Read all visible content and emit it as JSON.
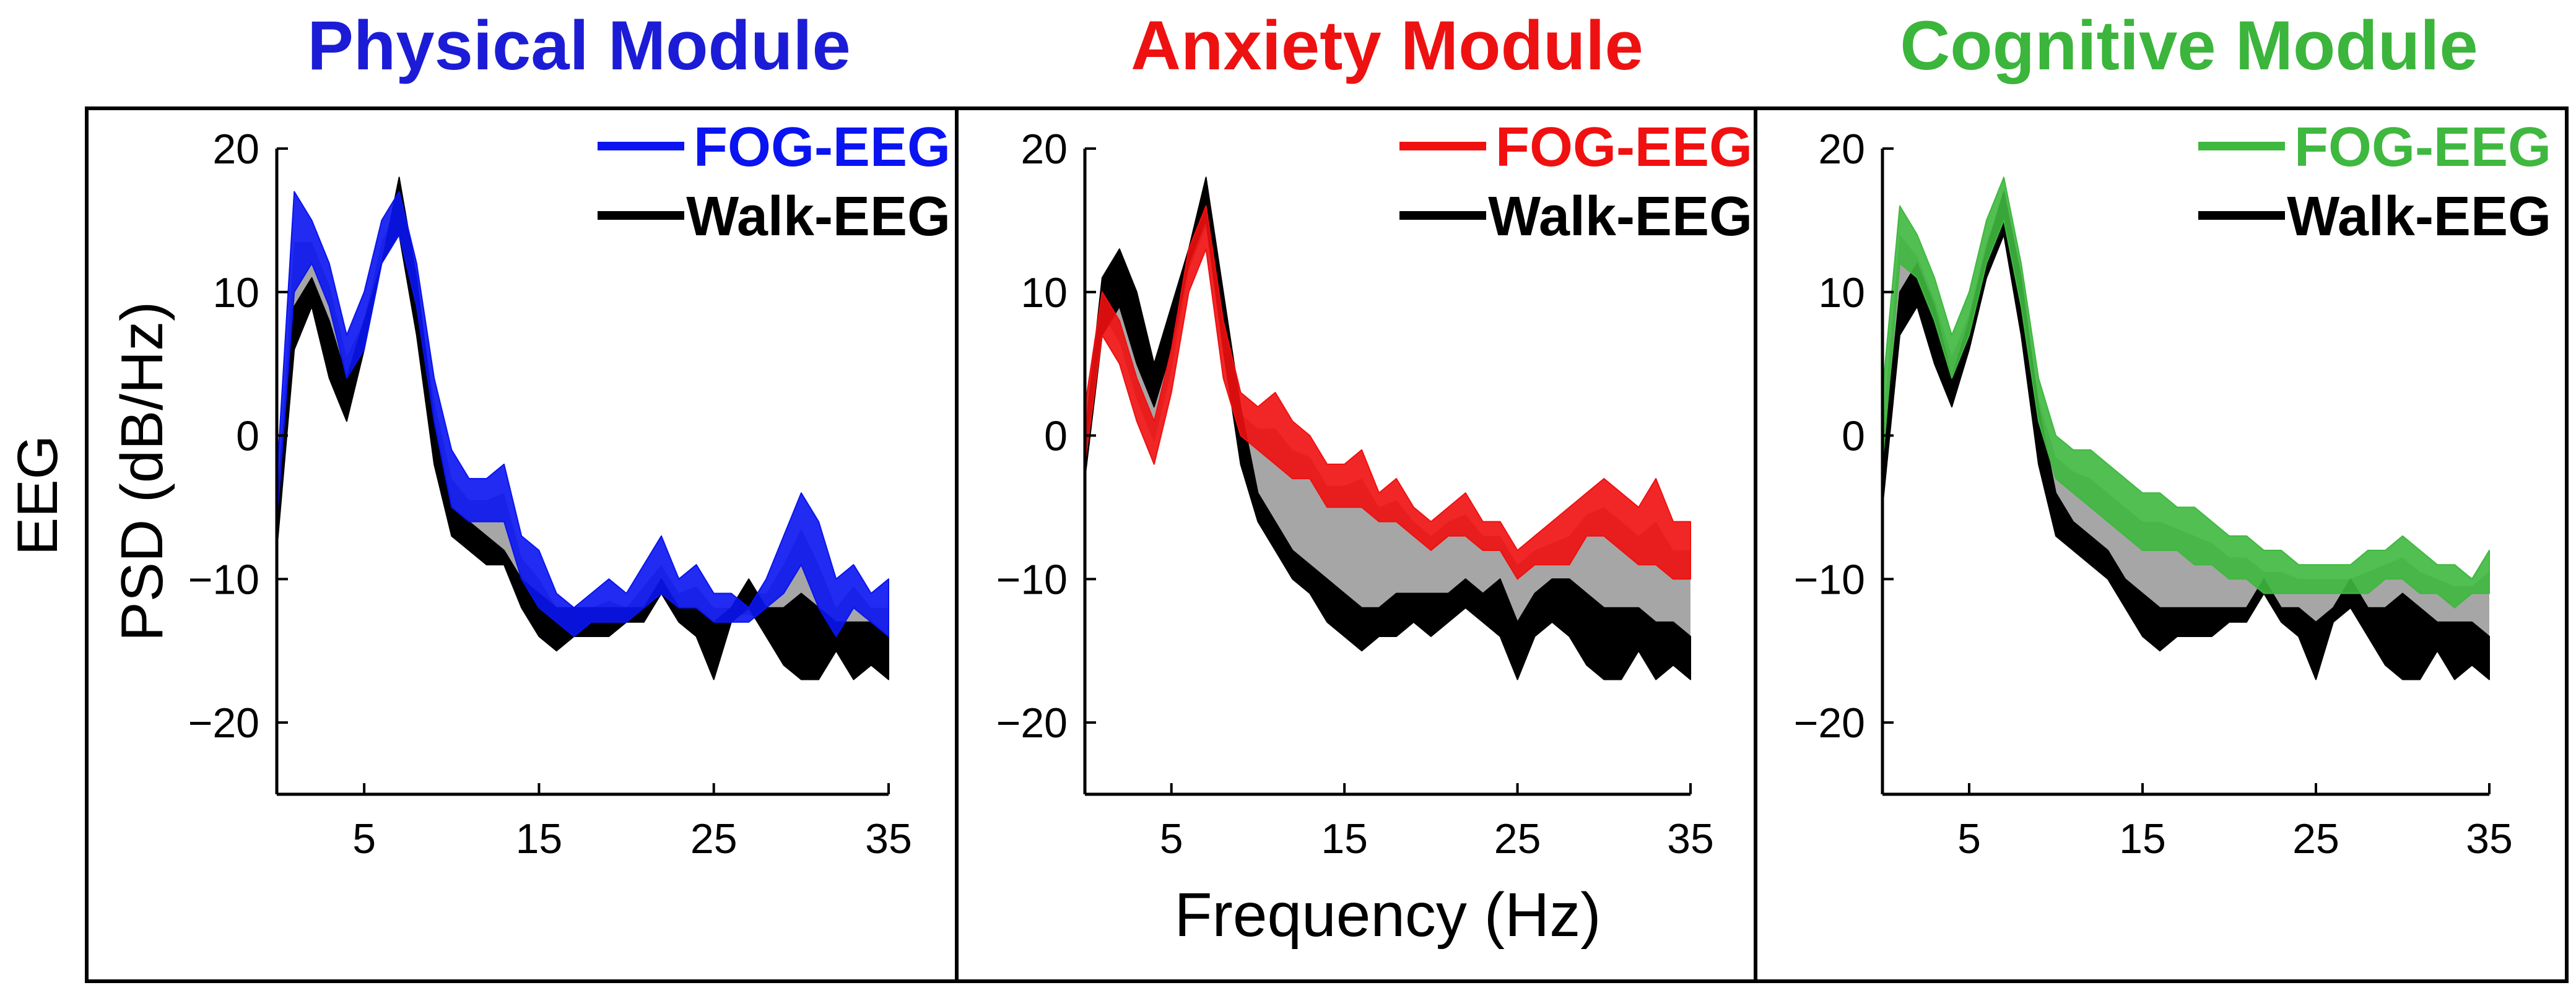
{
  "figure": {
    "row_label": "EEG",
    "ylabel": "PSD (dB/Hz)",
    "xlabel": "Frequency (Hz)"
  },
  "colors": {
    "walk": "#000000",
    "overlap": "#a6a6a6",
    "axis": "#000000",
    "panel_border": "#000000"
  },
  "chart_data": [
    {
      "type": "area",
      "title": "Physical Module",
      "title_color": "#1c1cd6",
      "fog_color": "#0a14f0",
      "xlabel": "",
      "ylabel": "PSD (dB/Hz)",
      "xlim": [
        0,
        35
      ],
      "ylim": [
        -25,
        20
      ],
      "xticks": [
        5,
        15,
        25,
        35
      ],
      "yticks": [
        20,
        10,
        0,
        -10,
        -20
      ],
      "grid": false,
      "legend": "top-right",
      "series": [
        {
          "name": "FOG-EEG",
          "x": [
            0,
            1,
            2,
            3,
            4,
            5,
            6,
            7,
            8,
            9,
            10,
            11,
            12,
            13,
            14,
            15,
            16,
            17,
            18,
            19,
            20,
            21,
            22,
            23,
            24,
            25,
            26,
            27,
            28,
            29,
            30,
            31,
            32,
            33,
            34,
            35
          ],
          "upper": [
            -3,
            17,
            15,
            12,
            7,
            10,
            15,
            17,
            12,
            4,
            -1,
            -3,
            -3,
            -2,
            -7,
            -8,
            -11,
            -12,
            -11,
            -10,
            -11,
            -9,
            -7,
            -10,
            -9,
            -11,
            -11,
            -12,
            -10,
            -7,
            -4,
            -6,
            -10,
            -9,
            -11,
            -10
          ],
          "lower": [
            -6,
            10,
            12,
            9,
            4,
            6,
            12,
            14,
            9,
            1,
            -5,
            -6,
            -6,
            -6,
            -10,
            -12,
            -13,
            -14,
            -13,
            -13,
            -13,
            -12,
            -11,
            -12,
            -12,
            -13,
            -13,
            -13,
            -12,
            -11,
            -9,
            -12,
            -14,
            -12,
            -13,
            -14
          ]
        },
        {
          "name": "Walk-EEG",
          "x": [
            0,
            1,
            2,
            3,
            4,
            5,
            6,
            7,
            8,
            9,
            10,
            11,
            12,
            13,
            14,
            15,
            16,
            17,
            18,
            19,
            20,
            21,
            22,
            23,
            24,
            25,
            26,
            27,
            28,
            29,
            30,
            31,
            32,
            33,
            34,
            35
          ],
          "upper": [
            -5,
            9,
            11,
            8,
            4,
            8,
            12,
            18,
            11,
            1,
            -5,
            -6,
            -7,
            -8,
            -10,
            -11,
            -12,
            -12,
            -12,
            -12,
            -12,
            -12,
            -10,
            -12,
            -12,
            -13,
            -12,
            -10,
            -12,
            -12,
            -11,
            -12,
            -13,
            -13,
            -13,
            -14
          ],
          "lower": [
            -8,
            6,
            9,
            4,
            1,
            6,
            12,
            14,
            7,
            -2,
            -7,
            -8,
            -9,
            -9,
            -12,
            -14,
            -15,
            -14,
            -14,
            -14,
            -13,
            -13,
            -11,
            -13,
            -14,
            -17,
            -13,
            -12,
            -14,
            -16,
            -17,
            -17,
            -15,
            -17,
            -16,
            -17
          ]
        }
      ]
    },
    {
      "type": "area",
      "title": "Anxiety Module",
      "title_color": "#ee1111",
      "fog_color": "#f01010",
      "xlabel": "Frequency (Hz)",
      "ylabel": "",
      "xlim": [
        0,
        35
      ],
      "ylim": [
        -25,
        20
      ],
      "xticks": [
        5,
        15,
        25,
        35
      ],
      "yticks": [
        20,
        10,
        0,
        -10,
        -20
      ],
      "grid": false,
      "legend": "top-right",
      "series": [
        {
          "name": "FOG-EEG",
          "x": [
            0,
            1,
            2,
            3,
            4,
            5,
            6,
            7,
            8,
            9,
            10,
            11,
            12,
            13,
            14,
            15,
            16,
            17,
            18,
            19,
            20,
            21,
            22,
            23,
            24,
            25,
            26,
            27,
            28,
            29,
            30,
            31,
            32,
            33,
            34,
            35
          ],
          "upper": [
            2,
            10,
            8,
            4,
            1,
            6,
            13,
            16,
            8,
            3,
            2,
            3,
            1,
            0,
            -2,
            -2,
            -1,
            -4,
            -3,
            -5,
            -6,
            -5,
            -4,
            -6,
            -6,
            -8,
            -7,
            -6,
            -5,
            -4,
            -3,
            -4,
            -5,
            -3,
            -6,
            -6
          ],
          "lower": [
            -2,
            7,
            5,
            1,
            -2,
            3,
            10,
            13,
            4,
            0,
            -1,
            -2,
            -3,
            -3,
            -5,
            -5,
            -5,
            -6,
            -6,
            -7,
            -8,
            -7,
            -7,
            -8,
            -8,
            -10,
            -9,
            -9,
            -9,
            -7,
            -7,
            -8,
            -9,
            -9,
            -10,
            -10
          ]
        },
        {
          "name": "Walk-EEG",
          "x": [
            0,
            1,
            2,
            3,
            4,
            5,
            6,
            7,
            8,
            9,
            10,
            11,
            12,
            13,
            14,
            15,
            16,
            17,
            18,
            19,
            20,
            21,
            22,
            23,
            24,
            25,
            26,
            27,
            28,
            29,
            30,
            31,
            32,
            33,
            34,
            35
          ],
          "upper": [
            0,
            11,
            13,
            10,
            5,
            9,
            13,
            18,
            10,
            2,
            -4,
            -6,
            -8,
            -9,
            -10,
            -11,
            -12,
            -12,
            -11,
            -11,
            -11,
            -11,
            -10,
            -11,
            -10,
            -13,
            -11,
            -10,
            -10,
            -11,
            -12,
            -12,
            -12,
            -13,
            -13,
            -14
          ],
          "lower": [
            -3,
            7,
            9,
            5,
            2,
            6,
            12,
            15,
            6,
            -2,
            -6,
            -8,
            -10,
            -11,
            -13,
            -14,
            -15,
            -14,
            -14,
            -13,
            -14,
            -13,
            -12,
            -13,
            -14,
            -17,
            -14,
            -13,
            -14,
            -16,
            -17,
            -17,
            -15,
            -17,
            -16,
            -17
          ]
        }
      ]
    },
    {
      "type": "area",
      "title": "Cognitive Module",
      "title_color": "#3bb53b",
      "fog_color": "#3fb83f",
      "xlabel": "",
      "ylabel": "",
      "xlim": [
        0,
        35
      ],
      "ylim": [
        -25,
        20
      ],
      "xticks": [
        5,
        15,
        25,
        35
      ],
      "yticks": [
        20,
        10,
        0,
        -10,
        -20
      ],
      "grid": false,
      "legend": "top-right",
      "series": [
        {
          "name": "FOG-EEG",
          "x": [
            0,
            1,
            2,
            3,
            4,
            5,
            6,
            7,
            8,
            9,
            10,
            11,
            12,
            13,
            14,
            15,
            16,
            17,
            18,
            19,
            20,
            21,
            22,
            23,
            24,
            25,
            26,
            27,
            28,
            29,
            30,
            31,
            32,
            33,
            34,
            35
          ],
          "upper": [
            3,
            16,
            14,
            11,
            7,
            10,
            15,
            18,
            12,
            4,
            0,
            -1,
            -1,
            -2,
            -3,
            -4,
            -4,
            -5,
            -5,
            -6,
            -7,
            -7,
            -8,
            -8,
            -9,
            -9,
            -9,
            -9,
            -8,
            -8,
            -7,
            -8,
            -9,
            -9,
            -10,
            -8
          ],
          "lower": [
            -2,
            12,
            11,
            8,
            4,
            7,
            12,
            15,
            9,
            1,
            -3,
            -4,
            -5,
            -6,
            -7,
            -8,
            -8,
            -8,
            -9,
            -9,
            -10,
            -10,
            -11,
            -11,
            -11,
            -11,
            -11,
            -11,
            -11,
            -10,
            -10,
            -11,
            -11,
            -12,
            -11,
            -11
          ]
        },
        {
          "name": "Walk-EEG",
          "x": [
            0,
            1,
            2,
            3,
            4,
            5,
            6,
            7,
            8,
            9,
            10,
            11,
            12,
            13,
            14,
            15,
            16,
            17,
            18,
            19,
            20,
            21,
            22,
            23,
            24,
            25,
            26,
            27,
            28,
            29,
            30,
            31,
            32,
            33,
            34,
            35
          ],
          "upper": [
            -2,
            10,
            12,
            9,
            4,
            8,
            13,
            17,
            11,
            2,
            -4,
            -6,
            -7,
            -8,
            -10,
            -11,
            -12,
            -12,
            -12,
            -12,
            -12,
            -12,
            -10,
            -12,
            -12,
            -13,
            -12,
            -10,
            -12,
            -12,
            -11,
            -12,
            -13,
            -13,
            -13,
            -14
          ],
          "lower": [
            -5,
            7,
            9,
            5,
            2,
            6,
            11,
            14,
            7,
            -2,
            -7,
            -8,
            -9,
            -10,
            -12,
            -14,
            -15,
            -14,
            -14,
            -14,
            -13,
            -13,
            -11,
            -13,
            -14,
            -17,
            -13,
            -12,
            -14,
            -16,
            -17,
            -17,
            -15,
            -17,
            -16,
            -17
          ]
        }
      ]
    }
  ]
}
